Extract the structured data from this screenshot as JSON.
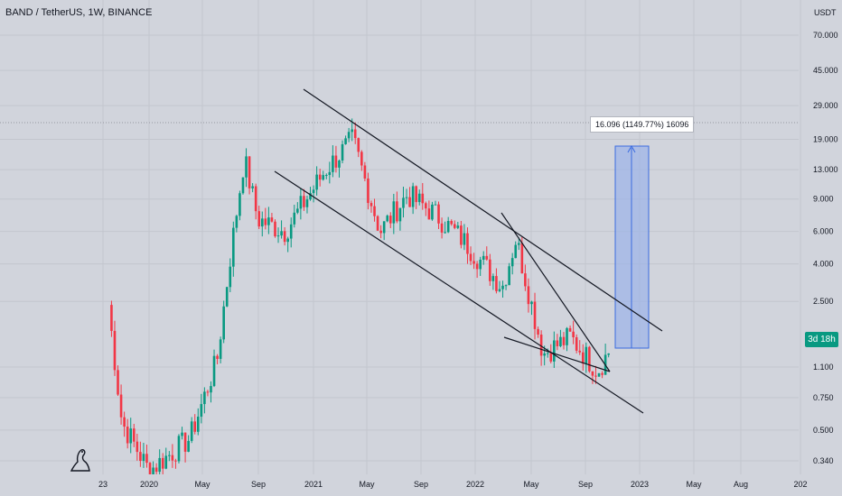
{
  "header": {
    "title": "BAND / TetherUS, 1W, BINANCE"
  },
  "price_axis": {
    "unit": "USDT",
    "ticks": [
      "70.000",
      "45.000",
      "29.000",
      "19.000",
      "13.000",
      "9.000",
      "6.000",
      "4.000",
      "2.500",
      "1.100",
      "0.750",
      "0.500",
      "0.340"
    ]
  },
  "time_axis": {
    "ticks": [
      "23",
      "2020",
      "May",
      "Sep",
      "2021",
      "May",
      "Sep",
      "2022",
      "May",
      "Sep",
      "2023",
      "May",
      "Aug",
      "202"
    ]
  },
  "countdown": "3d 18h",
  "measure": {
    "label": "16.096 (1149.77%) 16096"
  },
  "colors": {
    "up": "#089981",
    "down": "#f23645",
    "range_fill": "#9db4e8",
    "range_line": "#3a6be0",
    "trendline": "#131722"
  },
  "chart_data": {
    "type": "candlestick",
    "title": "BAND / TetherUS, 1W, BINANCE",
    "y_scale": "log",
    "ylim": [
      0.3,
      90
    ],
    "x_range": [
      "2019-10",
      "2024-01"
    ],
    "interval": "1W",
    "approx_close_path": [
      {
        "date": "2019-10",
        "price": 2.4
      },
      {
        "date": "2019-11",
        "price": 0.55
      },
      {
        "date": "2020-01",
        "price": 0.3
      },
      {
        "date": "2020-04",
        "price": 0.45
      },
      {
        "date": "2020-06",
        "price": 1.2
      },
      {
        "date": "2020-07",
        "price": 4.5
      },
      {
        "date": "2020-08",
        "price": 15.0
      },
      {
        "date": "2020-09",
        "price": 7.0
      },
      {
        "date": "2020-11",
        "price": 6.0
      },
      {
        "date": "2021-02",
        "price": 13.0
      },
      {
        "date": "2021-04",
        "price": 19.0
      },
      {
        "date": "2021-06",
        "price": 6.0
      },
      {
        "date": "2021-08",
        "price": 9.5
      },
      {
        "date": "2021-10",
        "price": 7.5
      },
      {
        "date": "2021-12",
        "price": 5.5
      },
      {
        "date": "2022-03",
        "price": 3.0
      },
      {
        "date": "2022-04",
        "price": 5.5
      },
      {
        "date": "2022-06",
        "price": 1.3
      },
      {
        "date": "2022-08",
        "price": 1.6
      },
      {
        "date": "2022-10",
        "price": 1.05
      },
      {
        "date": "2022-11",
        "price": 1.4
      }
    ],
    "measurement": {
      "from_price": 1.4,
      "to_price": 17.5,
      "change": "16.096",
      "percent": "1149.77%"
    }
  }
}
